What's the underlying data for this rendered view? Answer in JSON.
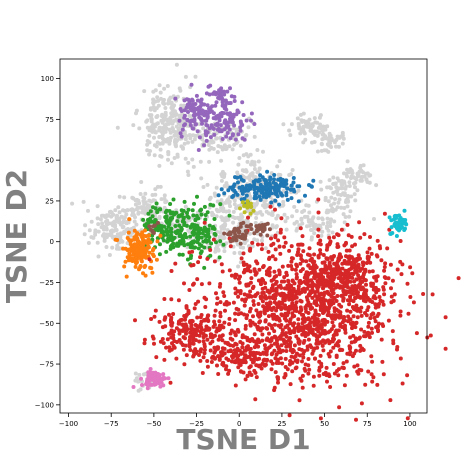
{
  "chart_data": {
    "type": "scatter",
    "title": "",
    "xlabel": "TSNE D1",
    "ylabel": "TSNE D2",
    "xlim": [
      -105,
      110
    ],
    "ylim": [
      -105,
      112
    ],
    "xticks": [
      -100,
      -75,
      -50,
      -25,
      0,
      25,
      50,
      75,
      100
    ],
    "yticks": [
      -100,
      -75,
      -50,
      -25,
      0,
      25,
      50,
      75,
      100
    ],
    "grid": false,
    "legend": "none",
    "series": [
      {
        "color": "#d3d3d3",
        "blobs": [
          {
            "x": -40,
            "y": 73,
            "sx": 9,
            "sy": 12,
            "n": 260
          },
          {
            "x": -12,
            "y": 64,
            "sx": 9,
            "sy": 6,
            "n": 90
          },
          {
            "x": -72,
            "y": 8,
            "sx": 10,
            "sy": 7,
            "n": 170
          },
          {
            "x": -52,
            "y": 22,
            "sx": 7,
            "sy": 5,
            "n": 80
          },
          {
            "x": -35,
            "y": 10,
            "sx": 7,
            "sy": 6,
            "n": 80
          },
          {
            "x": 8,
            "y": 32,
            "sx": 13,
            "sy": 10,
            "n": 220
          },
          {
            "x": 2,
            "y": 10,
            "sx": 10,
            "sy": 10,
            "n": 150
          },
          {
            "x": 45,
            "y": 12,
            "sx": 9,
            "sy": 5,
            "n": 80
          },
          {
            "x": 60,
            "y": 30,
            "sx": 5,
            "sy": 6,
            "n": 60
          },
          {
            "x": 42,
            "y": 70,
            "sx": 6,
            "sy": 4,
            "n": 60
          },
          {
            "x": 55,
            "y": 62,
            "sx": 5,
            "sy": 3,
            "n": 40
          },
          {
            "x": 70,
            "y": 40,
            "sx": 4,
            "sy": 3,
            "n": 40
          },
          {
            "x": -57,
            "y": -86,
            "sx": 3,
            "sy": 3,
            "n": 25
          },
          {
            "x": -13,
            "y": 5,
            "sx": 4,
            "sy": 6,
            "n": 40
          }
        ]
      },
      {
        "color": "#9467bd",
        "blobs": [
          {
            "x": -25,
            "y": 80,
            "sx": 5,
            "sy": 7,
            "n": 90
          },
          {
            "x": -9,
            "y": 75,
            "sx": 7,
            "sy": 8,
            "n": 110
          },
          {
            "x": -12,
            "y": 90,
            "sx": 3,
            "sy": 3,
            "n": 25
          }
        ]
      },
      {
        "color": "#1f77b4",
        "blobs": [
          {
            "x": 16,
            "y": 33,
            "sx": 11,
            "sy": 4,
            "n": 160
          }
        ]
      },
      {
        "color": "#2ca02c",
        "blobs": [
          {
            "x": -45,
            "y": 10,
            "sx": 7,
            "sy": 6,
            "n": 110
          },
          {
            "x": -24,
            "y": 7,
            "sx": 7,
            "sy": 9,
            "n": 110
          },
          {
            "x": -35,
            "y": 0,
            "sx": 10,
            "sy": 3,
            "n": 50
          }
        ]
      },
      {
        "color": "#ff7f0e",
        "blobs": [
          {
            "x": -59,
            "y": -6,
            "sx": 5,
            "sy": 6,
            "n": 160
          }
        ]
      },
      {
        "color": "#d62728",
        "blobs": [
          {
            "x": 38,
            "y": -40,
            "sx": 28,
            "sy": 22,
            "n": 1300
          },
          {
            "x": 62,
            "y": -22,
            "sx": 12,
            "sy": 9,
            "n": 220
          },
          {
            "x": 2,
            "y": -70,
            "sx": 14,
            "sy": 6,
            "n": 160
          },
          {
            "x": -30,
            "y": -55,
            "sx": 10,
            "sy": 8,
            "n": 180
          }
        ]
      },
      {
        "color": "#8c564b",
        "blobs": [
          {
            "x": 0,
            "y": 5,
            "sx": 3,
            "sy": 3,
            "n": 40
          },
          {
            "x": 13,
            "y": 8,
            "sx": 3,
            "sy": 2,
            "n": 30
          },
          {
            "x": -50,
            "y": 7,
            "sx": 2,
            "sy": 2,
            "n": 8
          }
        ]
      },
      {
        "color": "#bcbd22",
        "blobs": [
          {
            "x": 5,
            "y": 21,
            "sx": 2,
            "sy": 2,
            "n": 15
          }
        ]
      },
      {
        "color": "#17becf",
        "blobs": [
          {
            "x": 93,
            "y": 11,
            "sx": 2.5,
            "sy": 3,
            "n": 55
          }
        ]
      },
      {
        "color": "#e377c2",
        "blobs": [
          {
            "x": -50,
            "y": -84,
            "sx": 4,
            "sy": 2.5,
            "n": 70
          }
        ]
      }
    ]
  }
}
